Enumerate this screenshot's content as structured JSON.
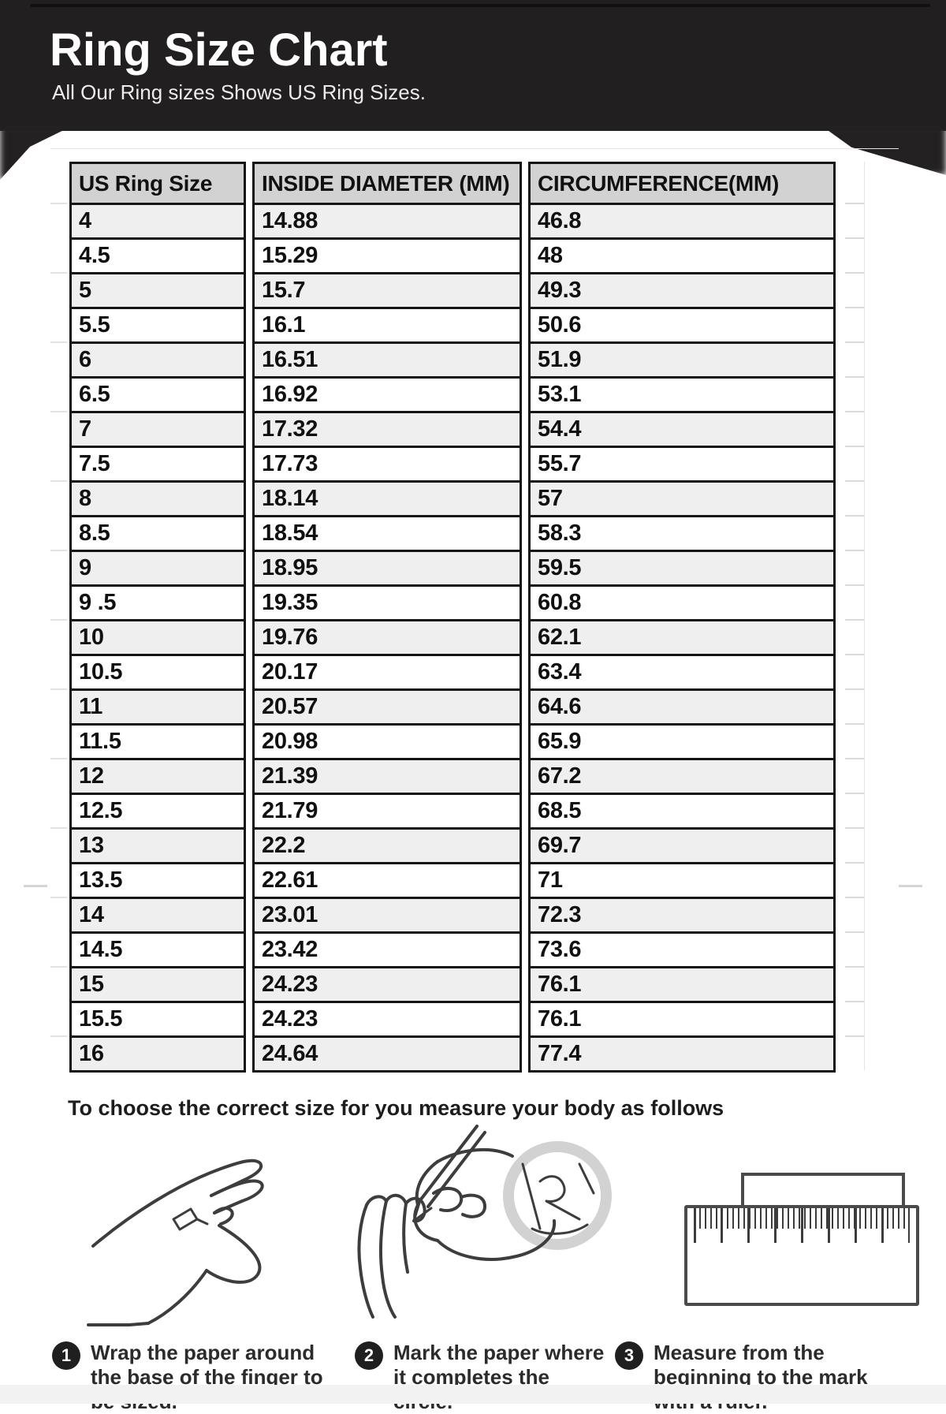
{
  "header": {
    "title": "Ring Size Chart",
    "subtitle": "All Our Ring sizes Shows US Ring Sizes."
  },
  "table": {
    "columns": [
      "US Ring Size",
      "INSIDE DIAMETER (MM)",
      "CIRCUMFERENCE(MM)"
    ],
    "rows": [
      [
        "4",
        "14.88",
        "46.8"
      ],
      [
        "4.5",
        "15.29",
        "48"
      ],
      [
        "5",
        "15.7",
        "49.3"
      ],
      [
        "5.5",
        "16.1",
        "50.6"
      ],
      [
        "6",
        "16.51",
        "51.9"
      ],
      [
        "6.5",
        "16.92",
        "53.1"
      ],
      [
        "7",
        "17.32",
        "54.4"
      ],
      [
        "7.5",
        "17.73",
        "55.7"
      ],
      [
        "8",
        "18.14",
        "57"
      ],
      [
        "8.5",
        "18.54",
        "58.3"
      ],
      [
        "9",
        "18.95",
        "59.5"
      ],
      [
        "9 .5",
        "19.35",
        "60.8"
      ],
      [
        "10",
        "19.76",
        "62.1"
      ],
      [
        "10.5",
        "20.17",
        "63.4"
      ],
      [
        "11",
        "20.57",
        "64.6"
      ],
      [
        "11.5",
        "20.98",
        "65.9"
      ],
      [
        "12",
        "21.39",
        "67.2"
      ],
      [
        "12.5",
        "21.79",
        "68.5"
      ],
      [
        "13",
        "22.2",
        "69.7"
      ],
      [
        "13.5",
        "22.61",
        "71"
      ],
      [
        "14",
        "23.01",
        "72.3"
      ],
      [
        "14.5",
        "23.42",
        "73.6"
      ],
      [
        "15",
        "24.23",
        "76.1"
      ],
      [
        "15.5",
        "24.23",
        "76.1"
      ],
      [
        "16",
        "24.64",
        "77.4"
      ]
    ]
  },
  "instructions": {
    "heading": "To choose the correct size for you measure your body as follows",
    "steps": [
      {
        "number": "1",
        "text": "Wrap the paper around the base of the finger to be sized."
      },
      {
        "number": "2",
        "text": "Mark the paper where it completes the circle."
      },
      {
        "number": "3",
        "text": "Measure from the beginning to the mark with a ruler."
      }
    ],
    "illustrations": [
      "hand-with-paper-strip",
      "hand-marking-paper-with-pencil",
      "ruler-measuring-paper"
    ]
  },
  "colors": {
    "banner_bg": "#221f20",
    "table_header_bg": "#d2d2d2",
    "row_alt_bg": "#efefef",
    "table_border": "#151515",
    "step_badge_bg": "#1f1f1f",
    "text": "#111111"
  },
  "chart_data": {
    "type": "table",
    "title": "Ring Size Chart",
    "columns": [
      "US Ring Size",
      "INSIDE DIAMETER (MM)",
      "CIRCUMFERENCE(MM)"
    ],
    "rows": [
      [
        "4",
        14.88,
        46.8
      ],
      [
        "4.5",
        15.29,
        48
      ],
      [
        "5",
        15.7,
        49.3
      ],
      [
        "5.5",
        16.1,
        50.6
      ],
      [
        "6",
        16.51,
        51.9
      ],
      [
        "6.5",
        16.92,
        53.1
      ],
      [
        "7",
        17.32,
        54.4
      ],
      [
        "7.5",
        17.73,
        55.7
      ],
      [
        "8",
        18.14,
        57
      ],
      [
        "8.5",
        18.54,
        58.3
      ],
      [
        "9",
        18.95,
        59.5
      ],
      [
        "9 .5",
        19.35,
        60.8
      ],
      [
        "10",
        19.76,
        62.1
      ],
      [
        "10.5",
        20.17,
        63.4
      ],
      [
        "11",
        20.57,
        64.6
      ],
      [
        "11.5",
        20.98,
        65.9
      ],
      [
        "12",
        21.39,
        67.2
      ],
      [
        "12.5",
        21.79,
        68.5
      ],
      [
        "13",
        22.2,
        69.7
      ],
      [
        "13.5",
        22.61,
        71
      ],
      [
        "14",
        23.01,
        72.3
      ],
      [
        "14.5",
        23.42,
        73.6
      ],
      [
        "15",
        24.23,
        76.1
      ],
      [
        "15.5",
        24.23,
        76.1
      ],
      [
        "16",
        24.64,
        77.4
      ]
    ]
  }
}
